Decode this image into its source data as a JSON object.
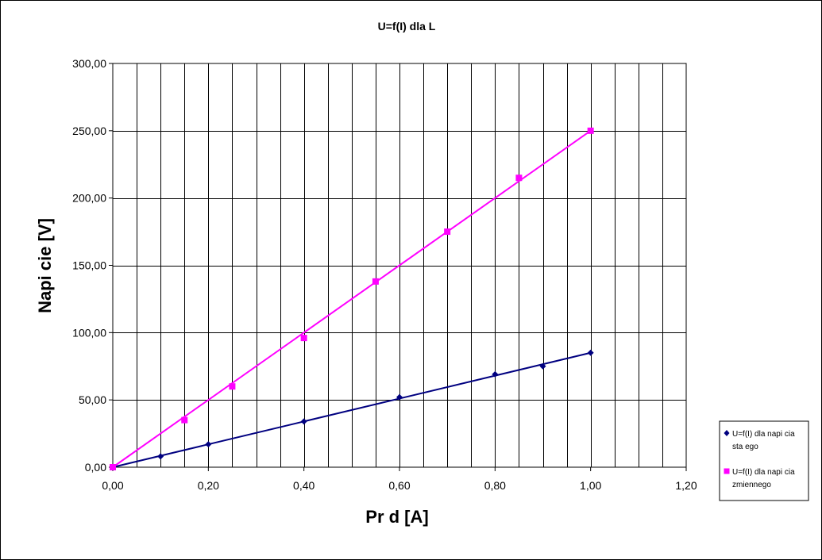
{
  "chart_data": {
    "type": "scatter",
    "title": "U=f(I) dla L",
    "xlabel": "Pr  d [A]",
    "ylabel": "Napi  cie [V]",
    "xlim": [
      0,
      1.2
    ],
    "ylim": [
      0,
      300
    ],
    "x_ticks": [
      "0,00",
      "0,20",
      "0,40",
      "0,60",
      "0,80",
      "1,00",
      "1,20"
    ],
    "y_ticks": [
      "0,00",
      "50,00",
      "100,00",
      "150,00",
      "200,00",
      "250,00",
      "300,00"
    ],
    "grid": true,
    "legend_position": "right",
    "series": [
      {
        "name": "U=f(I) dla napi  cia sta ego",
        "legend_lines": [
          "U=f(I) dla napi  cia",
          "sta ego"
        ],
        "color": "#000080",
        "marker": "diamond",
        "x": [
          0,
          0.1,
          0.2,
          0.4,
          0.6,
          0.8,
          0.9,
          1.0
        ],
        "y": [
          0,
          8,
          17,
          34,
          52,
          69,
          75,
          85
        ],
        "trendline": [
          [
            0,
            0
          ],
          [
            1.0,
            85
          ]
        ]
      },
      {
        "name": "U=f(I) dla napi  cia zmiennego",
        "legend_lines": [
          "U=f(I) dla napi  cia",
          "zmiennego"
        ],
        "color": "#ff00ff",
        "marker": "square",
        "x": [
          0,
          0.15,
          0.25,
          0.4,
          0.55,
          0.7,
          0.85,
          1.0
        ],
        "y": [
          0,
          35,
          60,
          96,
          138,
          175,
          215,
          250
        ],
        "trendline": [
          [
            0,
            0
          ],
          [
            1.0,
            250
          ]
        ]
      }
    ]
  }
}
